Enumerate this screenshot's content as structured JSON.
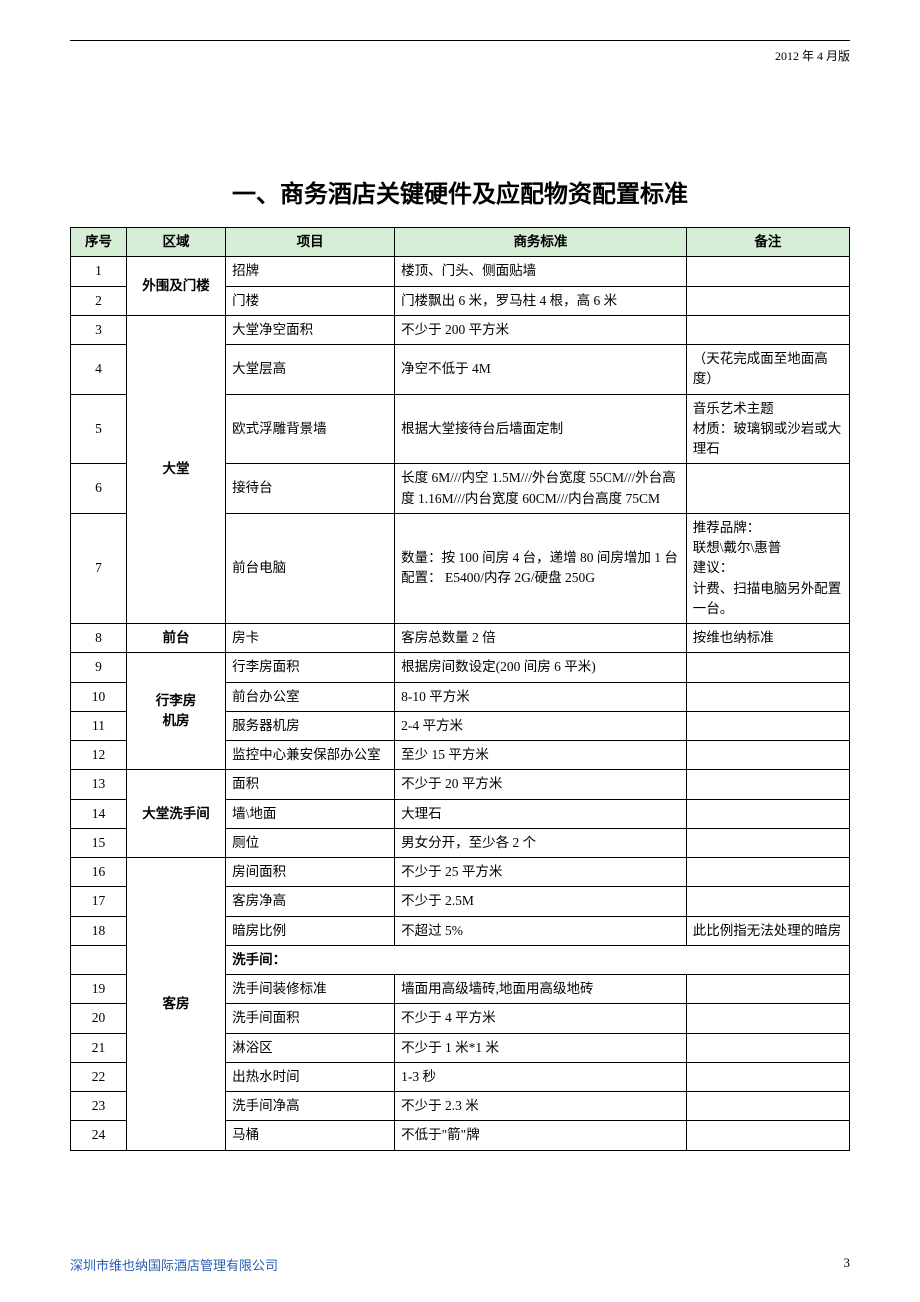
{
  "header": {
    "date": "2012 年 4 月版"
  },
  "title": "一、商务酒店关键硬件及应配物资配置标准",
  "columns": {
    "seq": "序号",
    "area": "区域",
    "item": "项目",
    "standard": "商务标准",
    "note": "备注"
  },
  "rows": [
    {
      "seq": "1",
      "area": "外围及门楼",
      "area_rowspan": 2,
      "item": "招牌",
      "standard": "楼顶、门头、侧面贴墙",
      "note": ""
    },
    {
      "seq": "2",
      "item": "门楼",
      "standard": "门楼飘出 6 米，罗马柱 4 根，高 6 米",
      "note": ""
    },
    {
      "seq": "3",
      "area": "大堂",
      "area_rowspan": 5,
      "item": "大堂净空面积",
      "standard": "不少于 200 平方米",
      "note": ""
    },
    {
      "seq": "4",
      "item": "大堂层高",
      "standard": "净空不低于 4M",
      "note": "（天花完成面至地面高度）"
    },
    {
      "seq": "5",
      "item": "欧式浮雕背景墙",
      "standard": "根据大堂接待台后墙面定制",
      "note": "音乐艺术主题\n材质：玻璃钢或沙岩或大理石"
    },
    {
      "seq": "6",
      "item": "接待台",
      "standard": "长度 6M///内空 1.5M///外台宽度 55CM///外台高度 1.16M///内台宽度 60CM///内台高度 75CM",
      "note": ""
    },
    {
      "seq": "7",
      "item": "前台电脑",
      "standard": "数量：按 100 间房 4 台，递增 80 间房增加 1 台\n配置： E5400/内存 2G/硬盘 250G",
      "note": "推荐品牌：\n联想\\戴尔\\惠普\n建议：\n计费、扫描电脑另外配置一台。"
    },
    {
      "seq": "8",
      "area": "前台",
      "area_rowspan": 1,
      "item": "房卡",
      "standard": "客房总数量 2 倍",
      "note": "按维也纳标准"
    },
    {
      "seq": "9",
      "area": "行李房\n机房",
      "area_rowspan": 4,
      "item": "行李房面积",
      "standard": "根据房间数设定(200 间房 6 平米)",
      "note": ""
    },
    {
      "seq": "10",
      "item": "前台办公室",
      "standard": "8-10 平方米",
      "note": ""
    },
    {
      "seq": "11",
      "item": "服务器机房",
      "standard": "2-4 平方米",
      "note": ""
    },
    {
      "seq": "12",
      "item": "监控中心兼安保部办公室",
      "standard": "至少 15 平方米",
      "note": ""
    },
    {
      "seq": "13",
      "area": "大堂洗手间",
      "area_rowspan": 3,
      "item": "面积",
      "standard": "不少于 20 平方米",
      "note": ""
    },
    {
      "seq": "14",
      "item": "墙\\地面",
      "standard": "大理石",
      "note": ""
    },
    {
      "seq": "15",
      "item": "厕位",
      "standard": "男女分开，至少各 2 个",
      "note": ""
    },
    {
      "seq": "16",
      "area": "客房",
      "area_rowspan": 10,
      "item": "房间面积",
      "standard": "不少于 25 平方米",
      "note": ""
    },
    {
      "seq": "17",
      "item": "客房净高",
      "standard": "不少于 2.5M",
      "note": ""
    },
    {
      "seq": "18",
      "item": "暗房比例",
      "standard": "不超过 5%",
      "note": "此比例指无法处理的暗房"
    },
    {
      "section": true,
      "label": "洗手间："
    },
    {
      "seq": "19",
      "item": "洗手间装修标准",
      "standard": "墙面用高级墙砖,地面用高级地砖",
      "note": ""
    },
    {
      "seq": "20",
      "item": "洗手间面积",
      "standard": "不少于 4 平方米",
      "note": ""
    },
    {
      "seq": "21",
      "item": "淋浴区",
      "standard": "不少于 1 米*1 米",
      "note": ""
    },
    {
      "seq": "22",
      "item": "出热水时间",
      "standard": "1-3 秒",
      "note": ""
    },
    {
      "seq": "23",
      "item": "洗手间净高",
      "standard": "不少于 2.3 米",
      "note": ""
    },
    {
      "seq": "24",
      "item": "马桶",
      "standard": "不低于\"箭\"牌",
      "note": ""
    }
  ],
  "footer": {
    "company": "深圳市维也纳国际酒店管理有限公司",
    "page": "3"
  }
}
